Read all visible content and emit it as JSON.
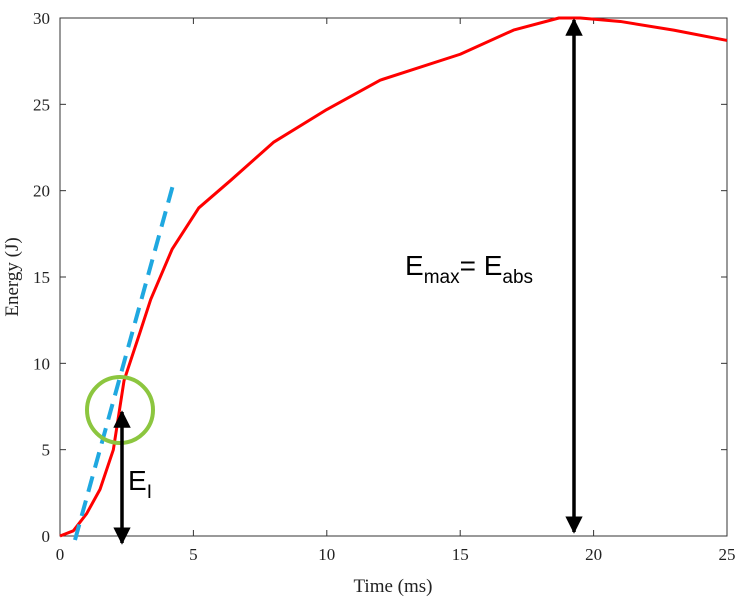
{
  "chart_data": {
    "type": "line",
    "x": [
      0,
      0.5,
      1,
      1.5,
      2,
      2.4,
      3,
      3.4,
      4.2,
      5.2,
      6.4,
      8,
      10,
      12,
      15,
      17,
      18.7,
      19.5,
      21,
      23,
      25
    ],
    "series": [
      {
        "color": "#ff0000",
        "values": [
          0,
          0.3,
          1.3,
          2.7,
          5,
          9,
          11.8,
          13.7,
          16.6,
          19,
          20.6,
          22.8,
          24.7,
          26.4,
          27.9,
          29.3,
          30,
          30,
          29.8,
          29.3,
          28.7
        ]
      }
    ],
    "xlabel": "Time (ms)",
    "ylabel": "Energy (J)",
    "xlim": [
      0,
      25
    ],
    "xticks": [
      0,
      5,
      10,
      15,
      20,
      25
    ],
    "ylim": [
      0,
      30
    ],
    "yticks": [
      0,
      5,
      10,
      15,
      20,
      25,
      30
    ],
    "annotations": {
      "ei": {
        "main": "E",
        "sub": "I"
      },
      "emax": {
        "main": "E",
        "sub": "max",
        "main2": "= E",
        "sub2": "abs"
      }
    }
  }
}
